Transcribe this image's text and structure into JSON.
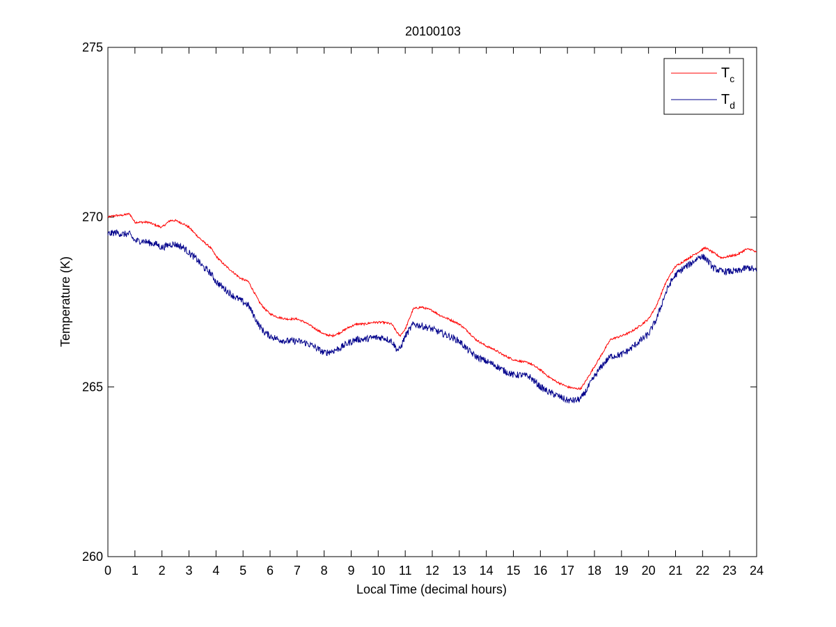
{
  "chart_data": {
    "type": "line",
    "title": "20100103",
    "xlabel": "Local Time (decimal hours)",
    "ylabel": "Temperature (K)",
    "xlim": [
      0,
      24
    ],
    "ylim": [
      260,
      275
    ],
    "xticks": [
      "0",
      "1",
      "2",
      "3",
      "4",
      "5",
      "6",
      "7",
      "8",
      "9",
      "10",
      "11",
      "12",
      "13",
      "14",
      "15",
      "16",
      "17",
      "18",
      "19",
      "20",
      "21",
      "22",
      "23",
      "24"
    ],
    "yticks": [
      "260",
      "265",
      "270",
      "275"
    ],
    "grid": false,
    "legend_position": "top-right",
    "series": [
      {
        "legend_main": "T",
        "legend_sub": "c",
        "color": "#ff0000",
        "noise": 0.03,
        "x": [
          0,
          0.3,
          0.5,
          0.8,
          1.0,
          1.3,
          1.5,
          1.8,
          2.0,
          2.3,
          2.5,
          2.8,
          3.0,
          3.3,
          3.5,
          3.8,
          4.0,
          4.3,
          4.6,
          4.9,
          5.2,
          5.4,
          5.6,
          5.8,
          6.0,
          6.3,
          6.6,
          7.0,
          7.3,
          7.6,
          8.0,
          8.3,
          8.6,
          8.9,
          9.2,
          9.5,
          9.8,
          10.2,
          10.5,
          10.7,
          10.8,
          11.0,
          11.3,
          11.6,
          12.0,
          12.3,
          12.6,
          13.0,
          13.3,
          13.6,
          14.0,
          14.3,
          14.6,
          15.0,
          15.3,
          15.6,
          16.0,
          16.3,
          16.6,
          17.0,
          17.3,
          17.5,
          17.7,
          18.0,
          18.3,
          18.6,
          19.0,
          19.3,
          19.6,
          20.0,
          20.3,
          20.6,
          20.8,
          21.0,
          21.3,
          21.6,
          21.9,
          22.1,
          22.4,
          22.7,
          23.0,
          23.3,
          23.6,
          23.8,
          24.0
        ],
        "y": [
          270.0,
          270.05,
          270.05,
          270.1,
          269.85,
          269.85,
          269.85,
          269.75,
          269.7,
          269.9,
          269.9,
          269.8,
          269.7,
          269.45,
          269.3,
          269.1,
          268.85,
          268.6,
          268.4,
          268.2,
          268.1,
          267.8,
          267.5,
          267.3,
          267.15,
          267.05,
          267.0,
          267.0,
          266.9,
          266.75,
          266.55,
          266.5,
          266.6,
          266.75,
          266.85,
          266.85,
          266.9,
          266.9,
          266.85,
          266.6,
          266.5,
          266.7,
          267.3,
          267.35,
          267.25,
          267.1,
          267.0,
          266.85,
          266.65,
          266.4,
          266.2,
          266.1,
          265.95,
          265.8,
          265.75,
          265.7,
          265.5,
          265.3,
          265.15,
          265.0,
          264.95,
          264.95,
          265.2,
          265.6,
          266.0,
          266.4,
          266.5,
          266.6,
          266.75,
          267.0,
          267.4,
          268.0,
          268.3,
          268.55,
          268.7,
          268.85,
          269.0,
          269.1,
          268.95,
          268.8,
          268.85,
          268.9,
          269.05,
          269.05,
          268.95
        ]
      },
      {
        "legend_main": "T",
        "legend_sub": "d",
        "color": "#00008b",
        "noise": 0.1,
        "x": [
          0,
          0.3,
          0.5,
          0.8,
          1.0,
          1.3,
          1.5,
          1.8,
          2.0,
          2.3,
          2.5,
          2.8,
          3.0,
          3.3,
          3.5,
          3.8,
          4.0,
          4.3,
          4.6,
          4.9,
          5.2,
          5.4,
          5.6,
          5.8,
          6.0,
          6.3,
          6.6,
          7.0,
          7.3,
          7.6,
          8.0,
          8.3,
          8.6,
          8.9,
          9.2,
          9.5,
          9.8,
          10.2,
          10.5,
          10.7,
          10.8,
          11.0,
          11.3,
          11.6,
          12.0,
          12.3,
          12.6,
          13.0,
          13.3,
          13.6,
          14.0,
          14.3,
          14.6,
          15.0,
          15.3,
          15.6,
          16.0,
          16.3,
          16.6,
          17.0,
          17.3,
          17.5,
          17.7,
          18.0,
          18.3,
          18.6,
          19.0,
          19.3,
          19.6,
          20.0,
          20.3,
          20.6,
          20.8,
          21.0,
          21.3,
          21.6,
          21.9,
          22.1,
          22.4,
          22.7,
          23.0,
          23.3,
          23.6,
          23.8,
          24.0
        ],
        "y": [
          269.5,
          269.55,
          269.5,
          269.5,
          269.3,
          269.3,
          269.25,
          269.2,
          269.1,
          269.2,
          269.2,
          269.1,
          268.95,
          268.75,
          268.55,
          268.35,
          268.1,
          267.9,
          267.7,
          267.55,
          267.4,
          267.1,
          266.8,
          266.6,
          266.5,
          266.4,
          266.35,
          266.35,
          266.3,
          266.2,
          266.0,
          266.05,
          266.15,
          266.3,
          266.4,
          266.4,
          266.45,
          266.45,
          266.35,
          266.1,
          266.1,
          266.5,
          266.85,
          266.8,
          266.7,
          266.6,
          266.5,
          266.35,
          266.1,
          265.9,
          265.75,
          265.65,
          265.5,
          265.35,
          265.35,
          265.3,
          265.0,
          264.85,
          264.75,
          264.6,
          264.6,
          264.65,
          264.9,
          265.3,
          265.65,
          265.9,
          265.95,
          266.1,
          266.3,
          266.55,
          267.0,
          267.7,
          268.05,
          268.3,
          268.5,
          268.65,
          268.85,
          268.8,
          268.5,
          268.4,
          268.4,
          268.4,
          268.5,
          268.5,
          268.4
        ]
      }
    ]
  }
}
